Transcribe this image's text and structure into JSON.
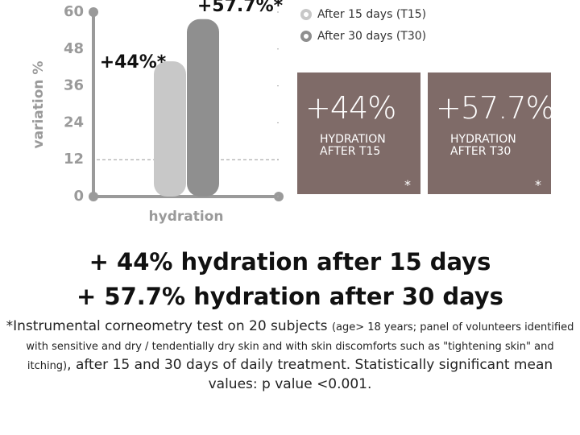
{
  "chart_data": {
    "type": "bar",
    "ylabel": "variation %",
    "categories": [
      "hydration"
    ],
    "series": [
      {
        "name": "After 15 days (T15)",
        "color": "#c8c8c8",
        "values": [
          44
        ],
        "value_labels": [
          "+44%*"
        ]
      },
      {
        "name": "After 30 days (T30)",
        "color": "#8f8f8f",
        "values": [
          57.7
        ],
        "value_labels": [
          "+57.7%*"
        ]
      }
    ],
    "ylim": [
      0,
      60
    ],
    "yticks": [
      0,
      12,
      24,
      36,
      48,
      60
    ],
    "hline": 12,
    "grid": true
  },
  "stat_boxes": [
    {
      "value": "+44%",
      "label": "HYDRATION AFTER T15",
      "note": "*"
    },
    {
      "value": "+57.7%",
      "label": "HYDRATION AFTER T30",
      "note": "*"
    }
  ],
  "headline": [
    "+ 44% hydration after 15 days",
    "+ 57.7% hydration after 30 days"
  ],
  "footnote": [
    "*Instrumental corneometry test on 20 subjects ",
    "(age> 18 years; panel of volunteers identified with sensitive and dry / tendentially dry skin and with skin discomforts such as \"tightening skin\" and itching)",
    ", after 15 and 30 days of daily treatment. Statistically significant mean values: p value <0.001."
  ]
}
